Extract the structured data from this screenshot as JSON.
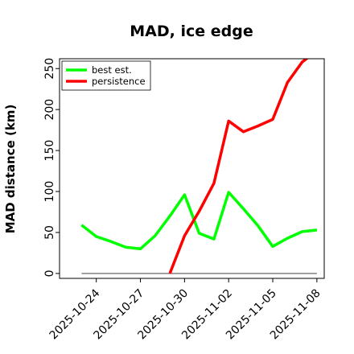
{
  "chart_data": {
    "type": "line",
    "title": "MAD, ice edge",
    "xlabel": "",
    "ylabel": "MAD distance (km)",
    "ylim": [
      -6,
      262
    ],
    "xlim": [
      "2025-10-21 12:00",
      "2025-11-08 12:00"
    ],
    "x_ticks": [
      "2025-10-24",
      "2025-10-27",
      "2025-10-30",
      "2025-11-02",
      "2025-11-05",
      "2025-11-08"
    ],
    "y_ticks": [
      0,
      50,
      100,
      150,
      200,
      250
    ],
    "legend_position": "top-left",
    "grid": false,
    "baseline": {
      "y": 0,
      "x_from": "2025-10-23",
      "x_to": "2025-11-08",
      "color": "#808080"
    },
    "series": [
      {
        "name": "best est.",
        "color": "#00ff00",
        "x": [
          "2025-10-23",
          "2025-10-24",
          "2025-10-25",
          "2025-10-26",
          "2025-10-27",
          "2025-10-28",
          "2025-10-29",
          "2025-10-30",
          "2025-10-31",
          "2025-11-01",
          "2025-11-02",
          "2025-11-03",
          "2025-11-04",
          "2025-11-05",
          "2025-11-06",
          "2025-11-07",
          "2025-11-08"
        ],
        "values": [
          59,
          45,
          39,
          32,
          30,
          46,
          70,
          96,
          49,
          42,
          99,
          79,
          58,
          33,
          43,
          51,
          53
        ]
      },
      {
        "name": "persistence",
        "color": "#ff0000",
        "x": [
          "2025-10-29",
          "2025-10-30",
          "2025-10-31",
          "2025-11-01",
          "2025-11-02",
          "2025-11-03",
          "2025-11-04",
          "2025-11-05",
          "2025-11-06",
          "2025-11-07",
          "2025-11-08"
        ],
        "values": [
          0,
          46,
          76,
          110,
          186,
          173,
          180,
          188,
          233,
          258,
          272
        ]
      }
    ]
  }
}
